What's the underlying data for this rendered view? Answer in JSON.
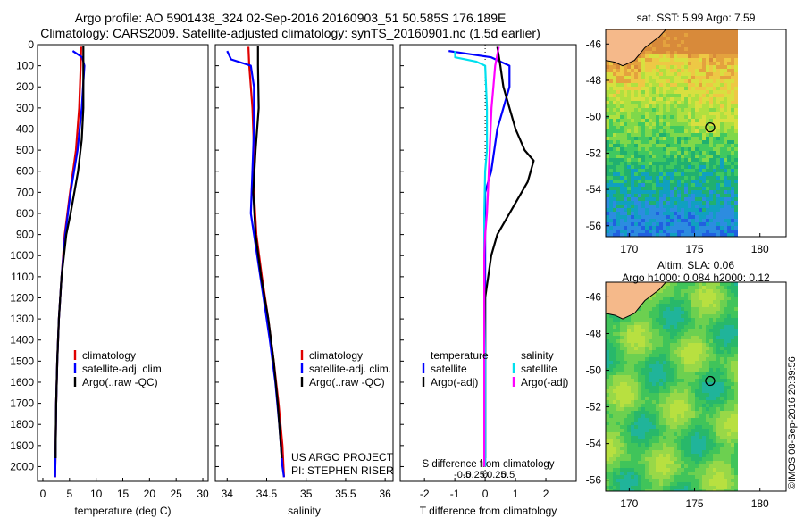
{
  "header": {
    "line1": "Argo profile: AO 5901438_324 02-Sep-2016 20160903_51 50.585S 176.189E",
    "line2": "Climatology: CARS2009. Satellite-adjusted climatology: synTS_20160901.nc (1.5d earlier)"
  },
  "colors": {
    "climatology": "#e00000",
    "satellite": "#0000ff",
    "argo": "#000000",
    "sat_salinity": "#00e0ee",
    "argo_salinity": "#ff00ff",
    "land": "#f5b98a"
  },
  "credit": {
    "line1": "US ARGO PROJECT",
    "line2": "PI: STEPHEN RISER"
  },
  "watermark": "©IMOS 08-Sep-2016 20:39:56",
  "legend_common": {
    "climatology": "climatology",
    "satellite": "satellite-adj. clim.",
    "argo": "Argo(..raw -QC)"
  },
  "diff_legend": {
    "temperature": "temperature",
    "salinity": "salinity",
    "satellite": "satellite",
    "argo": "Argo(-adj)"
  },
  "maps": {
    "sst_title": "sat. SST: 5.99  Argo: 7.59",
    "sla_title1": "Altim. SLA: 0.06",
    "sla_title2": "Argo h1000: 0.084  h2000: 0.12",
    "lat_ticks": [
      "-46",
      "-48",
      "-50",
      "-52",
      "-54",
      "-56"
    ],
    "lon_ticks": [
      "170",
      "175",
      "180"
    ],
    "float_lon": 176.189,
    "float_lat": -50.585
  },
  "chart_data": [
    {
      "type": "line",
      "xlabel": "temperature (deg C)",
      "ylabel": "",
      "xlim": [
        -1,
        31
      ],
      "ylim": [
        2070,
        0
      ],
      "x_ticks": [
        "0",
        "5",
        "10",
        "15",
        "20",
        "25",
        "30"
      ],
      "y_ticks": [
        "0",
        "100",
        "200",
        "300",
        "400",
        "500",
        "600",
        "700",
        "800",
        "900",
        "1000",
        "1100",
        "1200",
        "1300",
        "1400",
        "1500",
        "1600",
        "1700",
        "1800",
        "1900",
        "2000"
      ],
      "series": [
        {
          "name": "climatology",
          "color": "#e00000",
          "depth": [
            10,
            100,
            300,
            500,
            700,
            900,
            1100,
            1300,
            1500,
            1700,
            1900,
            2050
          ],
          "values": [
            7.2,
            7.1,
            6.8,
            6.2,
            5.1,
            4.1,
            3.5,
            3.0,
            2.7,
            2.5,
            2.4,
            2.3
          ]
        },
        {
          "name": "satellite-adj. clim.",
          "color": "#0000ff",
          "depth": [
            30,
            60,
            100,
            300,
            500,
            700,
            900,
            1100,
            1300,
            1500,
            1700,
            1900,
            2050
          ],
          "values": [
            5.6,
            7.4,
            7.8,
            7.3,
            6.5,
            5.2,
            4.2,
            3.5,
            3.0,
            2.7,
            2.5,
            2.4,
            2.3
          ]
        },
        {
          "name": "Argo(..raw -QC)",
          "color": "#000000",
          "depth": [
            5,
            100,
            300,
            450,
            600,
            700,
            800,
            900,
            1100,
            1300,
            1500,
            1700,
            1900,
            1960
          ],
          "values": [
            7.6,
            7.6,
            7.6,
            7.3,
            6.6,
            5.9,
            5.2,
            4.4,
            3.5,
            3.0,
            2.7,
            2.5,
            2.4,
            2.4
          ]
        }
      ]
    },
    {
      "type": "line",
      "xlabel": "salinity",
      "ylabel": "",
      "xlim": [
        33.85,
        36.1
      ],
      "ylim": [
        2070,
        0
      ],
      "x_ticks": [
        "34",
        "34.5",
        "35",
        "35.5",
        "36"
      ],
      "series": [
        {
          "name": "climatology",
          "color": "#e00000",
          "depth": [
            10,
            100,
            300,
            500,
            700,
            900,
            1100,
            1300,
            1500,
            1700,
            1900,
            2050
          ],
          "values": [
            34.27,
            34.28,
            34.32,
            34.34,
            34.34,
            34.37,
            34.44,
            34.52,
            34.59,
            34.65,
            34.7,
            34.72
          ]
        },
        {
          "name": "satellite-adj. clim.",
          "color": "#0000ff",
          "depth": [
            30,
            70,
            100,
            200,
            400,
            600,
            800,
            1000,
            1200,
            1400,
            1600,
            1800,
            2000,
            2050
          ],
          "values": [
            34.0,
            34.05,
            34.3,
            34.34,
            34.34,
            34.32,
            34.3,
            34.38,
            34.46,
            34.54,
            34.61,
            34.66,
            34.7,
            34.72
          ]
        },
        {
          "name": "Argo(..raw -QC)",
          "color": "#000000",
          "depth": [
            5,
            100,
            300,
            500,
            700,
            900,
            1100,
            1300,
            1500,
            1700,
            1900,
            1960
          ],
          "values": [
            34.39,
            34.39,
            34.4,
            34.36,
            34.33,
            34.36,
            34.43,
            34.52,
            34.59,
            34.64,
            34.68,
            34.69
          ]
        }
      ]
    },
    {
      "type": "line",
      "xlabel": "T difference from climatology",
      "title": "S difference from climatology",
      "xlim": [
        -2.8,
        3.0
      ],
      "ylim": [
        2070,
        0
      ],
      "x_ticks": [
        "-2",
        "-1",
        "0",
        "1",
        "2"
      ],
      "top_ticks": [
        "-0.5",
        "-0.25",
        "0",
        "0.25",
        "0.5"
      ],
      "series": [
        {
          "name": "temperature satellite",
          "color": "#0000ff",
          "depth": [
            30,
            60,
            100,
            200,
            300,
            400,
            500,
            600,
            700,
            800,
            900,
            1000,
            1200,
            1500,
            2000
          ],
          "values": [
            -1.2,
            0.2,
            0.8,
            0.8,
            0.6,
            0.4,
            0.3,
            0.2,
            0.0,
            0.0,
            0.0,
            0.0,
            0.0,
            0.0,
            0.0
          ]
        },
        {
          "name": "temperature Argo(-adj)",
          "color": "#000000",
          "depth": [
            10,
            100,
            200,
            300,
            400,
            500,
            550,
            600,
            650,
            700,
            750,
            800,
            900,
            1000,
            1100,
            1200,
            1300,
            1500,
            1700,
            1900,
            1960
          ],
          "values": [
            0.4,
            0.5,
            0.6,
            0.8,
            1.0,
            1.3,
            1.6,
            1.5,
            1.4,
            1.2,
            1.0,
            0.8,
            0.4,
            0.2,
            0.1,
            0.0,
            0.0,
            0.0,
            0.0,
            0.0,
            0.0
          ]
        },
        {
          "name": "salinity satellite",
          "color": "#00e0ee",
          "depth": [
            30,
            60,
            80,
            100,
            200,
            300,
            400,
            500,
            600,
            800,
            1000,
            1200,
            1500,
            2000
          ],
          "values": [
            -0.33,
            -0.33,
            -0.1,
            0.0,
            0.01,
            0.02,
            0.02,
            0.02,
            0.0,
            -0.01,
            -0.01,
            -0.01,
            0.0,
            0.0
          ]
        },
        {
          "name": "salinity Argo(-adj)",
          "color": "#ff00ff",
          "depth": [
            10,
            100,
            200,
            300,
            400,
            500,
            600,
            700,
            800,
            900,
            1000,
            1200,
            1500,
            1800,
            2000
          ],
          "values": [
            0.15,
            0.11,
            0.09,
            0.07,
            0.06,
            0.05,
            0.04,
            0.03,
            0.02,
            0.0,
            -0.01,
            -0.01,
            -0.01,
            -0.01,
            -0.01
          ]
        }
      ]
    }
  ]
}
